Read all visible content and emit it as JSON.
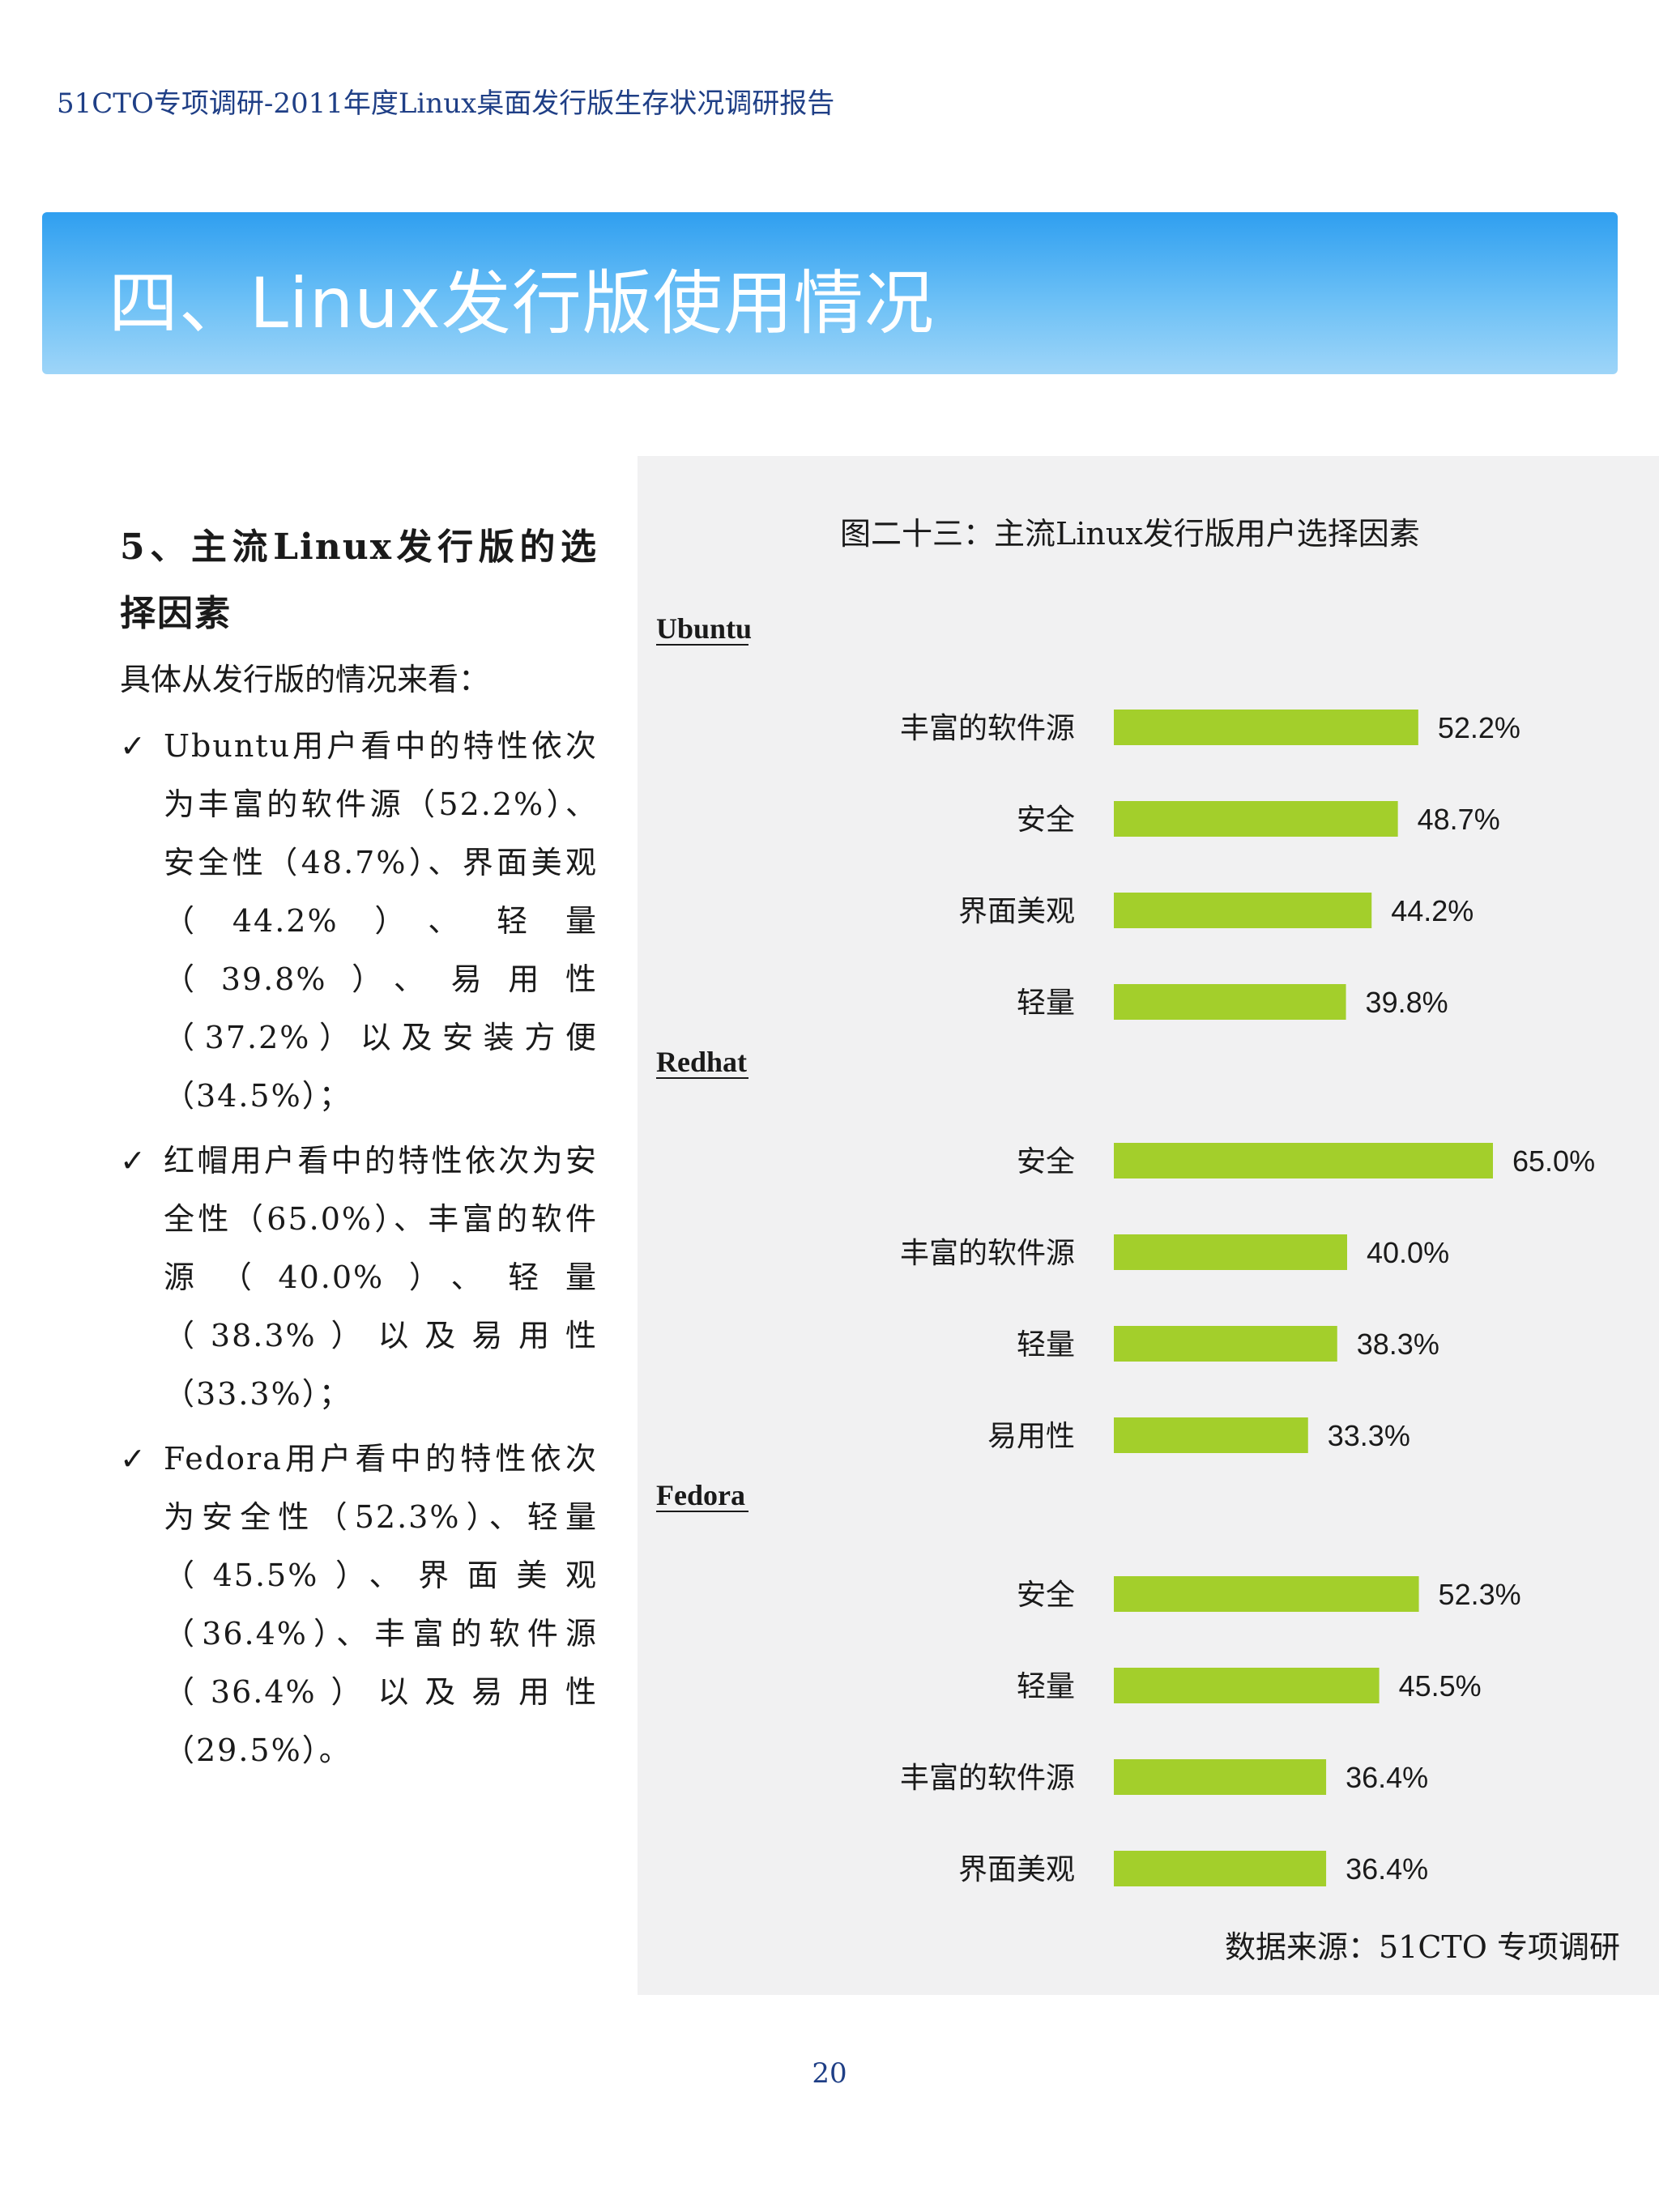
{
  "header": {
    "running_title": "51CTO专项调研-2011年度Linux桌面发行版生存状况调研报告"
  },
  "chapter": {
    "title": "四、Linux发行版使用情况"
  },
  "section": {
    "heading": "5、主流Linux发行版的选择因素",
    "intro": "具体从发行版的情况来看：",
    "bullets": [
      "Ubuntu用户看中的特性依次为丰富的软件源（52.2%）、安全性（48.7%）、界面美观（44.2%）、轻量（39.8%）、易用性（37.2%）以及安装方便（34.5%）；",
      "红帽用户看中的特性依次为安全性（65.0%）、丰富的软件源（40.0%）、轻量（38.3%）以及易用性（33.3%）；",
      "Fedora用户看中的特性依次为安全性（52.3%）、轻量（45.5%）、界面美观（36.4%）、丰富的软件源（36.4%）以及易用性（29.5%）。"
    ]
  },
  "figure": {
    "caption": "图二十三：主流Linux发行版用户选择因素",
    "source": "数据来源：51CTO 专项调研"
  },
  "chart_data": {
    "type": "bar",
    "orientation": "horizontal",
    "bar_color": "#a3cf2b",
    "value_suffix": "%",
    "groups": [
      {
        "name": "Ubuntu",
        "categories": [
          "丰富的软件源",
          "安全",
          "界面美观",
          "轻量"
        ],
        "values": [
          52.2,
          48.7,
          44.2,
          39.8
        ]
      },
      {
        "name": "Redhat",
        "categories": [
          "安全",
          "丰富的软件源",
          "轻量",
          "易用性"
        ],
        "values": [
          65.0,
          40.0,
          38.3,
          33.3
        ]
      },
      {
        "name": "Fedora",
        "categories": [
          "安全",
          "轻量",
          "丰富的软件源",
          "界面美观"
        ],
        "values": [
          52.3,
          45.5,
          36.4,
          36.4
        ]
      }
    ]
  },
  "footer": {
    "page_number": "20"
  }
}
